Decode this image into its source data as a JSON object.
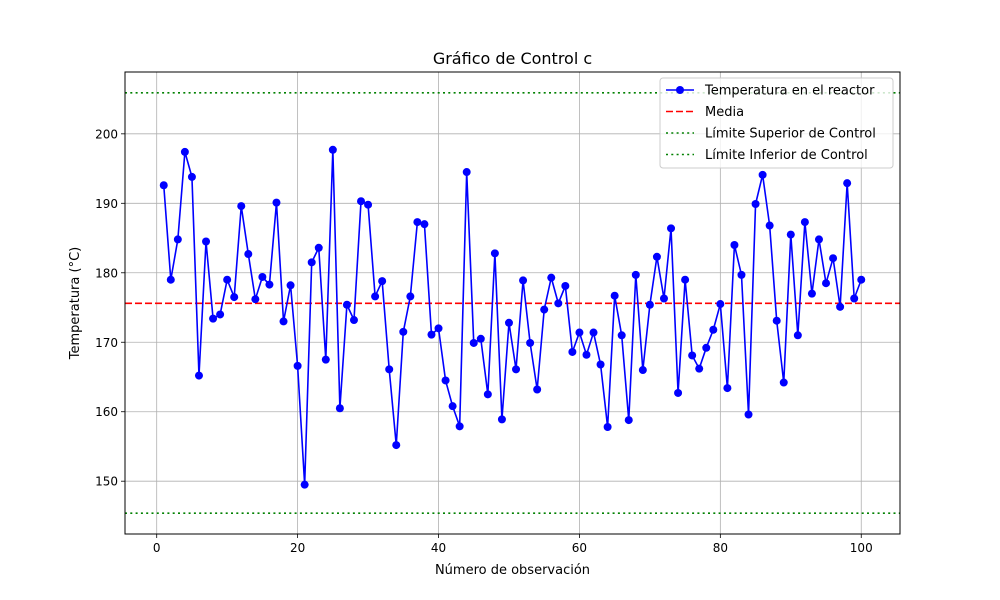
{
  "chart_data": {
    "type": "line",
    "title": "Gráfico de Control c",
    "xlabel": "Número de observación",
    "ylabel": "Temperatura (°C)",
    "xlim": [
      -4.5,
      105.5
    ],
    "ylim": [
      142.4,
      208.9
    ],
    "xticks": [
      0,
      20,
      40,
      60,
      80,
      100
    ],
    "yticks": [
      150,
      160,
      170,
      180,
      190,
      200
    ],
    "grid": true,
    "legend_position": "top-right",
    "series": [
      {
        "name": "Temperatura en el reactor",
        "color": "#0000ff",
        "marker": "circle",
        "x": [
          1,
          2,
          3,
          4,
          5,
          6,
          7,
          8,
          9,
          10,
          11,
          12,
          13,
          14,
          15,
          16,
          17,
          18,
          19,
          20,
          21,
          22,
          23,
          24,
          25,
          26,
          27,
          28,
          29,
          30,
          31,
          32,
          33,
          34,
          35,
          36,
          37,
          38,
          39,
          40,
          41,
          42,
          43,
          44,
          45,
          46,
          47,
          48,
          49,
          50,
          51,
          52,
          53,
          54,
          55,
          56,
          57,
          58,
          59,
          60,
          61,
          62,
          63,
          64,
          65,
          66,
          67,
          68,
          69,
          70,
          71,
          72,
          73,
          74,
          75,
          76,
          77,
          78,
          79,
          80,
          81,
          82,
          83,
          84,
          85,
          86,
          87,
          88,
          89,
          90,
          91,
          92,
          93,
          94,
          95,
          96,
          97,
          98,
          99,
          100
        ],
        "values": [
          192.6,
          179.0,
          184.8,
          197.4,
          193.8,
          165.2,
          184.5,
          173.4,
          174.0,
          179.0,
          176.5,
          189.6,
          182.7,
          176.2,
          179.4,
          178.3,
          190.1,
          173.0,
          178.2,
          166.6,
          149.5,
          181.5,
          183.6,
          167.5,
          197.7,
          160.5,
          175.4,
          173.2,
          190.3,
          189.8,
          176.6,
          178.8,
          166.1,
          155.2,
          171.5,
          176.6,
          187.3,
          187.0,
          171.1,
          172.0,
          164.5,
          160.8,
          157.9,
          194.5,
          169.9,
          170.5,
          162.5,
          182.8,
          158.9,
          172.8,
          166.1,
          178.9,
          169.9,
          163.2,
          174.7,
          179.3,
          175.6,
          178.1,
          168.6,
          171.4,
          168.2,
          171.4,
          166.8,
          157.8,
          176.7,
          171.0,
          158.8,
          179.7,
          166.0,
          175.4,
          182.3,
          176.3,
          186.4,
          162.7,
          179.0,
          168.1,
          166.2,
          169.2,
          171.8,
          175.5,
          163.4,
          184.0,
          179.7,
          159.6,
          189.9,
          194.1,
          186.8,
          173.1,
          164.2,
          185.5,
          171.0,
          187.3,
          177.0,
          184.8,
          178.5,
          182.1,
          175.1,
          192.9,
          176.3,
          179.0
        ]
      },
      {
        "name": "Media",
        "color": "#ff0000",
        "style": "dashed",
        "y": 175.6
      },
      {
        "name": "Límite Superior de Control",
        "color": "#008000",
        "style": "dotted",
        "y": 205.9
      },
      {
        "name": "Límite Inferior de Control",
        "color": "#008000",
        "style": "dotted",
        "y": 145.4
      }
    ]
  }
}
